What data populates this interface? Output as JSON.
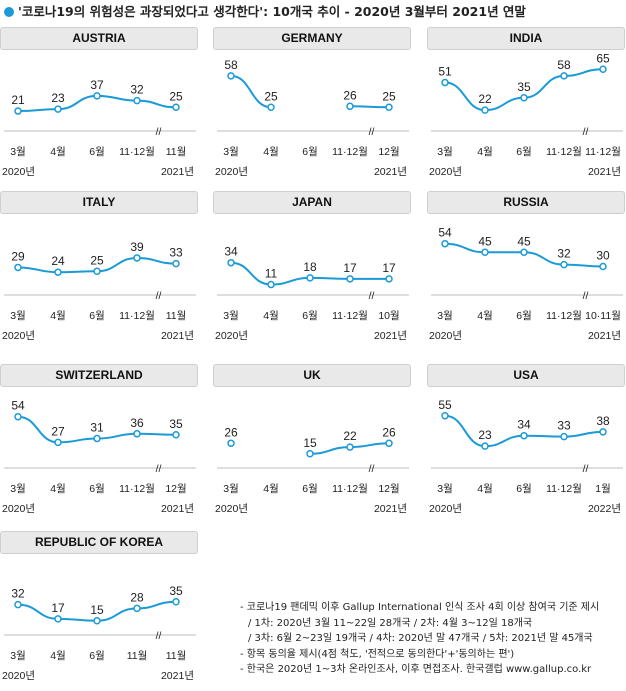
{
  "title": "'코로나19의 위험성은 과장되었다고 생각한다': 10개국 추이 - 2020년 3월부터 2021년 연말",
  "colors": {
    "line": "#1a9ad6",
    "header_bg": "#e9e9e9"
  },
  "chart_data": [
    {
      "type": "line",
      "title": "AUSTRIA",
      "categories": [
        "3월",
        "4월",
        "6월",
        "11·12월",
        "11월"
      ],
      "values": [
        21,
        23,
        37,
        32,
        25
      ],
      "year_start": "2020년",
      "year_end": "2021년",
      "break_after": 3
    },
    {
      "type": "line",
      "title": "GERMANY",
      "categories": [
        "3월",
        "4월",
        "6월",
        "11·12월",
        "12월"
      ],
      "values": [
        58,
        25,
        null,
        26,
        25
      ],
      "year_start": "2020년",
      "year_end": "2021년",
      "break_after": 3
    },
    {
      "type": "line",
      "title": "INDIA",
      "categories": [
        "3월",
        "4월",
        "6월",
        "11·12월",
        "11·12월"
      ],
      "values": [
        51,
        22,
        35,
        58,
        65
      ],
      "year_start": "2020년",
      "year_end": "2021년",
      "break_after": 3
    },
    {
      "type": "line",
      "title": "ITALY",
      "categories": [
        "3월",
        "4월",
        "6월",
        "11·12월",
        "11월"
      ],
      "values": [
        29,
        24,
        25,
        39,
        33
      ],
      "year_start": "2020년",
      "year_end": "2021년",
      "break_after": 3
    },
    {
      "type": "line",
      "title": "JAPAN",
      "categories": [
        "3월",
        "4월",
        "6월",
        "11·12월",
        "10월"
      ],
      "values": [
        34,
        11,
        18,
        17,
        17
      ],
      "year_start": "2020년",
      "year_end": "2021년",
      "break_after": 3
    },
    {
      "type": "line",
      "title": "RUSSIA",
      "categories": [
        "3월",
        "4월",
        "6월",
        "11·12월",
        "10·11월"
      ],
      "values": [
        54,
        45,
        45,
        32,
        30
      ],
      "year_start": "2020년",
      "year_end": "2021년",
      "break_after": 3
    },
    {
      "type": "line",
      "title": "SWITZERLAND",
      "categories": [
        "3월",
        "4월",
        "6월",
        "11·12월",
        "12월"
      ],
      "values": [
        54,
        27,
        31,
        36,
        35
      ],
      "year_start": "2020년",
      "year_end": "2021년",
      "break_after": 3
    },
    {
      "type": "line",
      "title": "UK",
      "categories": [
        "3월",
        "4월",
        "6월",
        "11·12월",
        "12월"
      ],
      "values": [
        26,
        null,
        15,
        22,
        26
      ],
      "year_start": "2020년",
      "year_end": "2021년",
      "break_after": 3
    },
    {
      "type": "line",
      "title": "USA",
      "categories": [
        "3월",
        "4월",
        "6월",
        "11·12월",
        "1월"
      ],
      "values": [
        55,
        23,
        34,
        33,
        38
      ],
      "year_start": "2020년",
      "year_end": "2022년",
      "break_after": 3
    },
    {
      "type": "line",
      "title": "REPUBLIC OF KOREA",
      "categories": [
        "3월",
        "4월",
        "6월",
        "11월",
        "11월"
      ],
      "values": [
        32,
        17,
        15,
        28,
        35
      ],
      "year_start": "2020년",
      "year_end": "2021년",
      "break_after": 3
    }
  ],
  "break_mark": "//",
  "notes": [
    "- 코로나19 팬데믹 이후 Gallup International 인식 조사 4회 이상 참여국 기준 제시",
    "/ 1차: 2020년 3월 11~22일 28개국 / 2차: 4월 3~12일 18개국",
    "/ 3차: 6월 2~23일 19개국 / 4차: 2020년 말 47개국 / 5차: 2021년 말 45개국",
    "- 항목 동의율 제시(4점 척도, '전적으로 동의한다'+'동의하는 편')",
    "- 한국은 2020년 1~3차 온라인조사, 이후 면접조사. 한국갤럽 www.gallup.co.kr"
  ]
}
